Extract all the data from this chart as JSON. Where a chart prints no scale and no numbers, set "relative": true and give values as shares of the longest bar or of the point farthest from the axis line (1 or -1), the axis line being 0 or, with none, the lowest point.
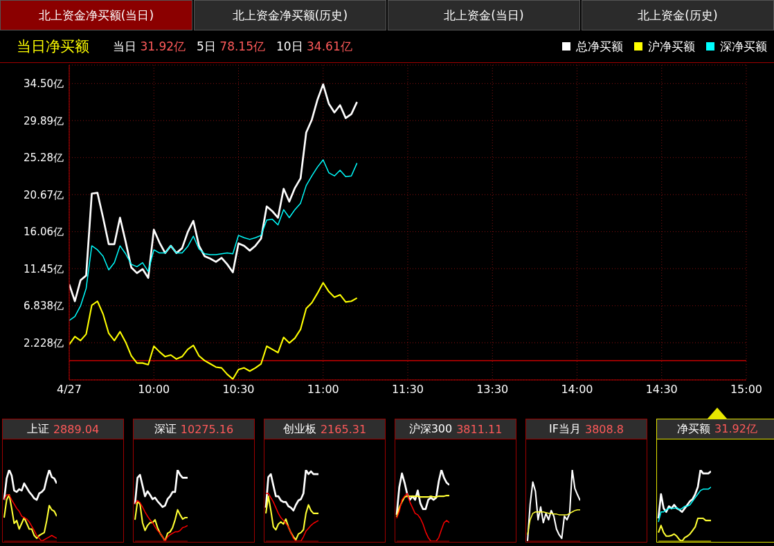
{
  "chart_data": [
    {
      "type": "line",
      "title": "当日净买额",
      "annotations": [
        "北上资金净买额(当日)",
        "北上资金净买额(历史)",
        "北上资金(当日)",
        "北上资金(历史)",
        "当日 31.92亿",
        "5日 78.15亿",
        "10日 34.61亿"
      ],
      "categories": [
        "4/27",
        null,
        null,
        null,
        null,
        null,
        null,
        null,
        null,
        null,
        null,
        null,
        null,
        null,
        null,
        "10:00",
        null,
        null,
        null,
        null,
        null,
        null,
        null,
        null,
        null,
        null,
        null,
        null,
        null,
        null,
        "10:30",
        null,
        null,
        null,
        null,
        null,
        null,
        null,
        null,
        null,
        null,
        null,
        null,
        null,
        null,
        "11:00",
        null,
        null,
        null,
        null,
        null,
        null,
        null,
        null,
        null,
        null,
        null,
        null,
        null,
        null,
        "11:30",
        null,
        null,
        null,
        null,
        null,
        null,
        null,
        null,
        null,
        null,
        null,
        null,
        null,
        null,
        "13:30",
        null,
        null,
        null,
        null,
        null,
        null,
        null,
        null,
        null,
        null,
        null,
        null,
        null,
        null,
        "14:00",
        null,
        null,
        null,
        null,
        null,
        null,
        null,
        null,
        null,
        null,
        null,
        null,
        null,
        null,
        "14:30",
        null,
        null,
        null,
        null,
        null,
        null,
        null,
        null,
        null,
        null,
        null,
        null,
        null,
        null,
        "15:00"
      ],
      "series": [
        {
          "name": "总净买额",
          "color": "#ffffff",
          "values": [
            9.5,
            7.4,
            10.0,
            10.6,
            20.8,
            20.9,
            17.8,
            14.5,
            14.5,
            17.8,
            14.8,
            11.6,
            10.9,
            11.4,
            10.3,
            16.3,
            14.7,
            13.4,
            14.3,
            13.4,
            14.0,
            16.0,
            17.4,
            14.3,
            13.0,
            12.7,
            12.3,
            12.8,
            12.0,
            11.0,
            14.6,
            14.3,
            13.7,
            14.3,
            15.2,
            19.2,
            18.6,
            17.8,
            21.4,
            19.8,
            21.5,
            22.7,
            28.4,
            30.0,
            32.5,
            34.4,
            32.0,
            30.9,
            31.8,
            30.2,
            30.7,
            32.2,
            null,
            null,
            null,
            null,
            null,
            null,
            null,
            null,
            null,
            null,
            null,
            null,
            null,
            null,
            null,
            null,
            null,
            null,
            null,
            null,
            null,
            null,
            null,
            null,
            null,
            null,
            null,
            null,
            null,
            null,
            null,
            null,
            null,
            null,
            null,
            null,
            null,
            null,
            null,
            null,
            null,
            null,
            null,
            null,
            null,
            null,
            null,
            null,
            null,
            null,
            null,
            null,
            null,
            null,
            null,
            null,
            null,
            null,
            null,
            null,
            null,
            null,
            null,
            null,
            null,
            null,
            null,
            null,
            null
          ]
        },
        {
          "name": "沪净买额",
          "color": "#ffff00",
          "values": [
            2.0,
            3.0,
            2.5,
            3.3,
            6.9,
            7.4,
            5.8,
            3.4,
            2.5,
            3.6,
            2.3,
            0.6,
            -0.3,
            -0.3,
            -0.5,
            1.8,
            1.1,
            0.5,
            0.7,
            0.2,
            0.5,
            1.4,
            1.9,
            0.6,
            0.0,
            -0.4,
            -0.8,
            -0.9,
            -1.7,
            -2.3,
            -1.1,
            -0.9,
            -1.3,
            -0.9,
            -0.4,
            1.8,
            1.4,
            1.0,
            2.9,
            2.2,
            2.8,
            3.9,
            6.5,
            7.2,
            8.4,
            9.7,
            8.6,
            7.9,
            8.2,
            7.3,
            7.4,
            7.8,
            null,
            null,
            null,
            null,
            null,
            null,
            null,
            null,
            null,
            null,
            null,
            null,
            null,
            null,
            null,
            null,
            null,
            null,
            null,
            null,
            null,
            null,
            null,
            null,
            null,
            null,
            null,
            null,
            null,
            null,
            null,
            null,
            null,
            null,
            null,
            null,
            null,
            null,
            null,
            null,
            null,
            null,
            null,
            null,
            null,
            null,
            null,
            null,
            null,
            null,
            null,
            null,
            null,
            null,
            null,
            null,
            null,
            null,
            null,
            null,
            null,
            null,
            null,
            null,
            null,
            null,
            null,
            null,
            null
          ]
        },
        {
          "name": "深净买额",
          "color": "#00ffff",
          "values": [
            5.0,
            5.5,
            6.8,
            9.0,
            14.3,
            13.8,
            13.0,
            11.3,
            12.2,
            14.3,
            13.3,
            12.0,
            11.7,
            12.2,
            11.1,
            13.8,
            13.4,
            13.4,
            14.3,
            13.4,
            13.4,
            14.2,
            15.5,
            13.9,
            13.3,
            13.2,
            13.2,
            13.3,
            13.4,
            13.3,
            15.6,
            15.3,
            15.1,
            15.3,
            15.6,
            17.5,
            17.6,
            16.9,
            18.8,
            17.8,
            18.8,
            19.6,
            21.8,
            23.0,
            24.1,
            25.0,
            23.4,
            23.0,
            23.7,
            22.9,
            23.0,
            24.6,
            null,
            null,
            null,
            null,
            null,
            null,
            null,
            null,
            null,
            null,
            null,
            null,
            null,
            null,
            null,
            null,
            null,
            null,
            null,
            null,
            null,
            null,
            null,
            null,
            null,
            null,
            null,
            null,
            null,
            null,
            null,
            null,
            null,
            null,
            null,
            null,
            null,
            null,
            null,
            null,
            null,
            null,
            null,
            null,
            null,
            null,
            null,
            null,
            null,
            null,
            null,
            null,
            null,
            null,
            null,
            null,
            null,
            null,
            null,
            null,
            null,
            null,
            null,
            null,
            null,
            null,
            null,
            null,
            null
          ]
        }
      ],
      "ylim": [
        -2.4,
        36.8
      ],
      "yticks": [
        {
          "value": 2.228,
          "label": "2.228亿"
        },
        {
          "value": 6.838,
          "label": "6.838亿"
        },
        {
          "value": 11.45,
          "label": "11.45亿"
        },
        {
          "value": 16.06,
          "label": "16.06亿"
        },
        {
          "value": 20.67,
          "label": "20.67亿"
        },
        {
          "value": 25.28,
          "label": "25.28亿"
        },
        {
          "value": 29.89,
          "label": "29.89亿"
        },
        {
          "value": 34.5,
          "label": "34.50亿"
        }
      ],
      "ref_lines": [
        {
          "axis": "y",
          "value": 0,
          "color": "#c00000"
        }
      ],
      "grid": true,
      "legend": "top right",
      "line_style": "solid"
    },
    {
      "type": "line",
      "title": "上证 2889.04",
      "relative": true,
      "categories": [
        null,
        null,
        null,
        null,
        null,
        null,
        null,
        null,
        null,
        null,
        null,
        null,
        null,
        null,
        null,
        null,
        null,
        null,
        null,
        null,
        null,
        null
      ],
      "series": [
        {
          "color": "#ffffff",
          "values": [
            0.58,
            0.88,
            1,
            0.92,
            0.71,
            0.69,
            0.73,
            0.71,
            0.81,
            0.75,
            0.69,
            0.65,
            0.6,
            0.58,
            0.67,
            0.69,
            0.73,
            0.88,
            1,
            0.9,
            0.88,
            0.81
          ]
        },
        {
          "color": "#ffff33",
          "values": [
            0.33,
            0.58,
            0.65,
            0.46,
            0.25,
            0.29,
            0.17,
            0.25,
            0.33,
            0.25,
            0.17,
            0.17,
            0.08,
            0.04,
            0.08,
            0.1,
            0.12,
            0.29,
            0.5,
            0.44,
            0.42,
            0.35
          ]
        },
        {
          "color": "#ff0000",
          "values": [
            0.58,
            0.65,
            0.65,
            0.58,
            0.52,
            0.46,
            0.42,
            0.35,
            0.33,
            0.31,
            0.27,
            0.21,
            0.15,
            0.08,
            0.04,
            0,
            0.02,
            0.04,
            0.06,
            0.08,
            0.06,
            0.04
          ]
        }
      ]
    },
    {
      "type": "line",
      "title": "深证 10275.16",
      "relative": true,
      "categories": [
        null,
        null,
        null,
        null,
        null,
        null,
        null,
        null,
        null,
        null,
        null,
        null,
        null,
        null,
        null,
        null,
        null,
        null,
        null,
        null,
        null,
        null
      ],
      "series": [
        {
          "color": "#ffffff",
          "values": [
            0.52,
            0.89,
            0.93,
            0.78,
            0.63,
            0.7,
            0.65,
            0.59,
            0.61,
            0.56,
            0.52,
            0.48,
            0.5,
            0.59,
            0.63,
            0.69,
            0.69,
            1,
            0.93,
            0.89,
            0.89,
            0.89
          ]
        },
        {
          "color": "#ffff33",
          "values": [
            0.3,
            0.56,
            0.52,
            0.26,
            0.15,
            0.22,
            0.26,
            0.26,
            0.3,
            0.19,
            0.11,
            0.06,
            0,
            0.11,
            0.13,
            0.19,
            0.3,
            0.44,
            0.37,
            0.31,
            0.33,
            0.33
          ]
        },
        {
          "color": "#ff0000",
          "values": [
            0.52,
            0.57,
            0.54,
            0.48,
            0.41,
            0.35,
            0.3,
            0.26,
            0.2,
            0.15,
            0.11,
            0.06,
            0,
            0.06,
            0.09,
            0.11,
            0.13,
            0.13,
            0.15,
            0.19,
            0.2,
            0.22
          ]
        }
      ]
    },
    {
      "type": "line",
      "title": "创业板 2165.31",
      "relative": true,
      "categories": [
        null,
        null,
        null,
        null,
        null,
        null,
        null,
        null,
        null,
        null,
        null,
        null,
        null,
        null,
        null,
        null,
        null,
        null,
        null,
        null,
        null,
        null
      ],
      "series": [
        {
          "color": "#ffffff",
          "values": [
            0.47,
            0.9,
            0.94,
            0.78,
            0.63,
            0.63,
            0.57,
            0.55,
            0.55,
            0.49,
            0.47,
            0.43,
            0.51,
            0.57,
            0.59,
            0.67,
            1,
            0.94,
            0.98,
            0.94,
            0.94,
            0.94
          ]
        },
        {
          "color": "#ffff33",
          "values": [
            0.39,
            0.63,
            0.43,
            0.2,
            0.16,
            0.24,
            0.27,
            0.24,
            0.31,
            0.2,
            0.12,
            0.06,
            0.02,
            0.1,
            0.12,
            0.16,
            0.39,
            0.51,
            0.43,
            0.39,
            0.39,
            0.39
          ]
        },
        {
          "color": "#ff0000",
          "values": [
            0.67,
            0.67,
            0.61,
            0.55,
            0.47,
            0.39,
            0.33,
            0.29,
            0.25,
            0.2,
            0.12,
            0.04,
            0,
            0,
            0,
            0.06,
            0.14,
            0.18,
            0.22,
            0.25,
            0.27,
            0.29
          ]
        }
      ]
    },
    {
      "type": "line",
      "title": "沪深300 3811.11",
      "relative": true,
      "categories": [
        null,
        null,
        null,
        null,
        null,
        null,
        null,
        null,
        null,
        null,
        null,
        null,
        null,
        null,
        null,
        null,
        null,
        null,
        null,
        null,
        null
      ],
      "series": [
        {
          "color": "#ffffff",
          "values": [
            0.37,
            0.76,
            0.95,
            0.82,
            0.66,
            0.58,
            0.63,
            0.58,
            0.71,
            0.53,
            0.45,
            0.45,
            0.58,
            0.61,
            0.58,
            0.61,
            0.84,
            1,
            0.89,
            0.82,
            0.79
          ]
        },
        {
          "color": "#ffff33",
          "values": [
            0.34,
            0.47,
            0.55,
            0.62,
            0.63,
            0.63,
            0.63,
            0.63,
            0.63,
            0.62,
            0.62,
            0.62,
            0.62,
            0.63,
            0.62,
            0.62,
            0.63,
            0.63,
            0.63,
            0.64,
            0.64
          ]
        },
        {
          "color": "#ff0000",
          "values": [
            0.32,
            0.42,
            0.58,
            0.63,
            0.67,
            0.55,
            0.47,
            0.39,
            0.37,
            0.32,
            0.24,
            0.13,
            0.05,
            0,
            0,
            0,
            0.05,
            0.16,
            0.26,
            0.29,
            0.26
          ]
        }
      ]
    },
    {
      "type": "line",
      "title": "IF当月 3808.8",
      "relative": true,
      "categories": [
        null,
        null,
        null,
        null,
        null,
        null,
        null,
        null,
        null,
        null,
        null,
        null,
        null,
        null,
        null,
        null,
        null,
        null,
        null,
        null,
        null
      ],
      "series": [
        {
          "color": "#ffffff",
          "values": [
            0,
            0.52,
            0.83,
            0.7,
            0.3,
            0.48,
            0.26,
            0.39,
            0.3,
            0.43,
            0.35,
            0.17,
            0.09,
            0.04,
            0.35,
            0.3,
            0.39,
            1,
            0.74,
            0.65,
            0.57
          ]
        },
        {
          "color": "#ffff33",
          "values": [
            0.09,
            0.3,
            0.39,
            0.41,
            0.41,
            0.41,
            0.41,
            0.4,
            0.39,
            0.39,
            0.38,
            0.38,
            0.37,
            0.37,
            0.37,
            0.37,
            0.39,
            0.41,
            0.43,
            0.44,
            0.44
          ]
        }
      ]
    },
    {
      "type": "line",
      "title": "净买额 31.92亿",
      "relative": true,
      "categories": [
        null,
        null,
        null,
        null,
        null,
        null,
        null,
        null,
        null,
        null,
        null,
        null,
        null,
        null,
        null,
        null,
        null,
        null,
        null,
        null,
        null
      ],
      "series": [
        {
          "color": "#ffffff",
          "values": [
            0.32,
            0.66,
            0.46,
            0.41,
            0.49,
            0.46,
            0.51,
            0.46,
            0.44,
            0.41,
            0.46,
            0.51,
            0.56,
            0.59,
            0.66,
            0.76,
            1,
            0.95,
            0.95,
            0.95,
            0.98
          ]
        },
        {
          "color": "#ffff33",
          "values": [
            0.12,
            0.22,
            0.12,
            0.07,
            0.07,
            0.08,
            0.1,
            0.07,
            0.02,
            0,
            0.05,
            0.07,
            0.1,
            0.15,
            0.2,
            0.32,
            0.32,
            0.32,
            0.29,
            0.29,
            0.29
          ]
        },
        {
          "color": "#00ffff",
          "values": [
            0.27,
            0.41,
            0.41,
            0.44,
            0.46,
            0.46,
            0.46,
            0.47,
            0.44,
            0.46,
            0.49,
            0.49,
            0.51,
            0.56,
            0.61,
            0.66,
            0.71,
            0.73,
            0.73,
            0.73,
            0.76
          ]
        }
      ]
    }
  ]
}
